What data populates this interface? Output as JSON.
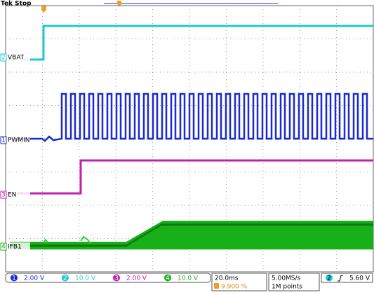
{
  "header": {
    "status": "Tek Stop"
  },
  "channels": [
    {
      "number": "2",
      "label": "VBAT"
    },
    {
      "number": "1",
      "label": "PWMIN"
    },
    {
      "number": "3",
      "label": "EN"
    },
    {
      "number": "4",
      "label": "IFB1"
    }
  ],
  "status_bar": {
    "channels": [
      {
        "number": "1",
        "scale": "2.00 V"
      },
      {
        "number": "2",
        "scale": "10.0 V"
      },
      {
        "number": "3",
        "scale": "2.00 V"
      },
      {
        "number": "4",
        "scale": "10.0 V"
      }
    ],
    "timebase": "20.0ms",
    "trigger_position": "9.900 %",
    "sample_rate": "5.00MS/s",
    "record_length": "1M points",
    "trigger": {
      "source": "2",
      "level": "5.60 V"
    }
  }
}
